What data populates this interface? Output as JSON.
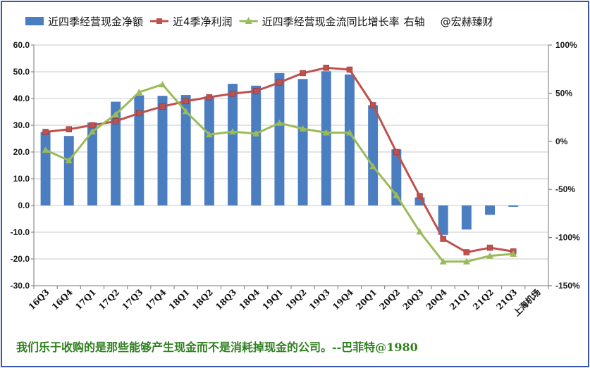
{
  "chart_data": {
    "type": "bar+line",
    "categories": [
      "16Q3",
      "16Q4",
      "17Q1",
      "17Q2",
      "17Q3",
      "17Q4",
      "18Q1",
      "18Q2",
      "18Q3",
      "18Q4",
      "19Q1",
      "19Q2",
      "19Q3",
      "19Q4",
      "20Q1",
      "20Q2",
      "20Q3",
      "20Q4",
      "21Q1",
      "21Q2",
      "21Q3"
    ],
    "extra_x_label": "上海机场",
    "y_left": {
      "min": -30,
      "max": 60,
      "step": 10,
      "tick_labels": [
        "-30.0",
        "-20.0",
        "-10.0",
        "0.0",
        "10.0",
        "20.0",
        "30.0",
        "40.0",
        "50.0",
        "60.0"
      ]
    },
    "y_right": {
      "min": -150,
      "max": 100,
      "step": 50,
      "tick_labels": [
        "-150%",
        "-100%",
        "-50%",
        "0%",
        "50%",
        "100%"
      ]
    },
    "grid": "horizontal",
    "legend_position": "top",
    "legend_note": "右轴",
    "watermark": "@宏赫臻财",
    "series": [
      {
        "name": "近四季经营现金净额",
        "kind": "bar",
        "axis": "left",
        "color": "#4a7ec0",
        "values": [
          27.5,
          26.0,
          31.0,
          38.8,
          41.2,
          41.0,
          41.3,
          40.8,
          45.5,
          44.8,
          49.5,
          47.3,
          50.2,
          49.0,
          37.5,
          21.0,
          3.0,
          -11.0,
          -9.0,
          -3.5,
          -0.5
        ]
      },
      {
        "name": "近4季净利润",
        "kind": "line",
        "axis": "left",
        "color": "#c0504d",
        "marker": "square",
        "values": [
          27.5,
          28.5,
          30.0,
          31.5,
          34.5,
          37.0,
          39.0,
          40.5,
          41.8,
          42.8,
          46.0,
          49.5,
          51.5,
          50.8,
          37.5,
          20.0,
          3.5,
          -12.5,
          -17.5,
          -15.8,
          -17.2
        ]
      },
      {
        "name": "近四季经营现金流同比增长率",
        "kind": "line",
        "axis": "right",
        "color": "#9bbb59",
        "marker": "triangle",
        "values": [
          -9,
          -20,
          10,
          28,
          51,
          59,
          31,
          7,
          10,
          8,
          19,
          13,
          9,
          9,
          -26,
          -56,
          -94,
          -125,
          -125,
          -119,
          -117
        ]
      }
    ]
  },
  "footer_quote": "我们乐于收购的是那些能够产生现金而不是消耗掉现金的公司。--巴菲特@1980"
}
